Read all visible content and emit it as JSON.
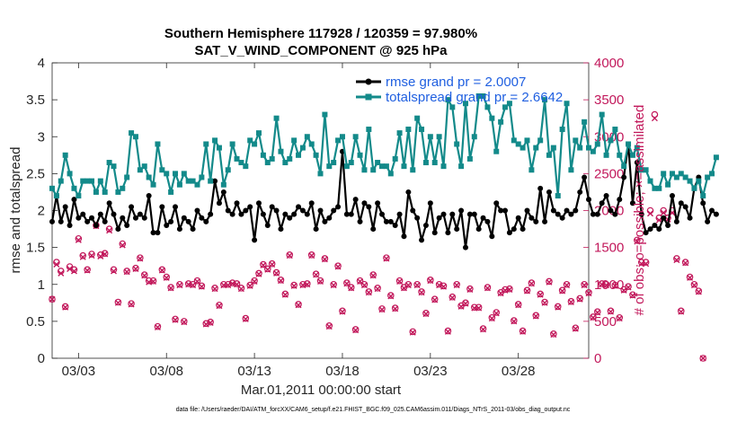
{
  "chart_data": {
    "type": "line",
    "title": "Southern Hemisphere 117928 / 120359 = 97.980%",
    "subtitle": "SAT_V_WIND_COMPONENT @ 925 hPa",
    "xlabel": "Mar.01,2011 00:00:00 start",
    "ylabel_left": "rmse and totalspread",
    "ylabel_right": "# of obs: o=possible; ×=assimilated",
    "ylim_left": [
      0,
      4
    ],
    "ylim_right": [
      0,
      4000
    ],
    "yticks_left": [
      "0",
      "0.5",
      "1",
      "1.5",
      "2",
      "2.5",
      "3",
      "3.5",
      "4"
    ],
    "yticks_right": [
      "0",
      "500",
      "1000",
      "1500",
      "2000",
      "2500",
      "3000",
      "3500",
      "4000"
    ],
    "xticks": [
      "03/03",
      "03/08",
      "03/13",
      "03/18",
      "03/23",
      "03/28"
    ],
    "xtick_days": [
      3,
      8,
      13,
      18,
      23,
      28
    ],
    "xlim_days": [
      1.5,
      32.0
    ],
    "x_start_day": 1.5,
    "x_step_days": 0.25,
    "series": [
      {
        "name": "rmse grand pr = 2.0007",
        "color": "#000000",
        "axis": "left",
        "values": [
          1.85,
          2.2,
          1.85,
          2.05,
          1.8,
          2.15,
          1.9,
          1.95,
          1.85,
          1.9,
          1.8,
          1.95,
          1.85,
          2.1,
          1.95,
          1.75,
          1.9,
          1.8,
          2.05,
          1.9,
          1.95,
          1.9,
          2.2,
          1.7,
          1.7,
          2.05,
          1.8,
          1.85,
          2.05,
          1.75,
          1.9,
          1.85,
          1.75,
          2.0,
          1.9,
          1.85,
          1.95,
          2.4,
          2.1,
          2.25,
          2.0,
          1.95,
          2.1,
          1.95,
          2.0,
          2.05,
          1.6,
          2.1,
          1.95,
          1.8,
          2.05,
          2.0,
          1.75,
          1.95,
          1.9,
          1.95,
          2.05,
          2.0,
          1.95,
          2.1,
          1.75,
          2.0,
          1.85,
          1.9,
          2.0,
          2.05,
          2.8,
          1.95,
          1.95,
          2.15,
          1.85,
          2.1,
          2.05,
          1.75,
          2.1,
          1.95,
          1.85,
          1.85,
          1.8,
          1.95,
          1.65,
          2.25,
          2.0,
          1.9,
          1.6,
          1.8,
          2.1,
          1.7,
          1.9,
          1.95,
          1.7,
          1.95,
          1.75,
          2.0,
          1.5,
          1.95,
          1.95,
          1.75,
          1.9,
          1.85,
          1.65,
          2.1,
          2.0,
          2.0,
          1.7,
          1.75,
          1.9,
          1.75,
          2.0,
          1.9,
          1.85,
          2.3,
          1.85,
          2.25,
          2.0,
          1.95,
          1.9,
          2.0,
          1.95,
          2.0,
          2.25,
          2.45,
          2.15,
          1.95,
          1.95,
          2.1,
          2.2,
          2.0,
          1.95,
          2.15,
          2.45,
          2.9,
          2.1,
          2.65,
          1.95,
          1.7,
          1.75,
          1.8,
          1.75,
          1.9,
          1.8,
          2.2,
          1.85,
          2.1,
          2.05,
          1.9,
          2.3,
          2.45,
          2.1,
          1.85,
          2.0,
          1.95
        ]
      },
      {
        "name": "totalspread grand pr = 2.6642",
        "color": "#138a8a",
        "axis": "left",
        "values": [
          2.3,
          2.2,
          2.4,
          2.75,
          2.5,
          2.3,
          2.2,
          2.4,
          2.4,
          2.4,
          2.25,
          2.4,
          2.25,
          2.65,
          2.6,
          2.25,
          2.3,
          2.45,
          3.05,
          3.0,
          2.55,
          2.6,
          2.45,
          2.35,
          2.9,
          2.55,
          2.5,
          2.25,
          2.5,
          2.35,
          2.5,
          2.4,
          2.4,
          2.35,
          2.45,
          2.9,
          2.4,
          2.95,
          2.85,
          2.35,
          2.55,
          2.9,
          2.7,
          2.65,
          2.6,
          2.95,
          2.9,
          3.05,
          2.75,
          2.65,
          2.7,
          3.25,
          2.8,
          2.65,
          2.7,
          2.95,
          2.75,
          2.85,
          3.0,
          2.9,
          2.75,
          2.5,
          3.3,
          2.6,
          2.65,
          2.95,
          3.0,
          2.6,
          2.65,
          3.0,
          2.75,
          2.55,
          3.1,
          2.55,
          2.65,
          2.6,
          2.6,
          2.5,
          2.7,
          3.05,
          2.6,
          3.1,
          2.55,
          3.25,
          3.1,
          2.65,
          3.0,
          2.65,
          3.0,
          2.6,
          3.5,
          3.4,
          2.9,
          2.6,
          3.45,
          2.7,
          3.0,
          3.55,
          3.55,
          3.4,
          3.25,
          2.8,
          3.2,
          3.4,
          3.45,
          2.95,
          2.9,
          2.85,
          2.95,
          2.55,
          2.85,
          2.95,
          3.5,
          2.75,
          2.85,
          2.2,
          3.1,
          3.45,
          2.55,
          2.95,
          2.85,
          3.2,
          2.85,
          2.8,
          2.9,
          3.3,
          2.75,
          2.95,
          3.1,
          2.75,
          2.6,
          2.9,
          2.75,
          2.85,
          2.55,
          2.55,
          2.4,
          2.3,
          2.3,
          2.5,
          2.35,
          2.5,
          2.45,
          2.5,
          2.45,
          2.4,
          2.3,
          2.4,
          2.2,
          2.45,
          2.5,
          2.72
        ]
      }
    ],
    "obs_possible": [
      800,
      1300,
      1180,
      700,
      1240,
      1200,
      1620,
      1390,
      1200,
      1410,
      1800,
      1400,
      1420,
      1750,
      1200,
      760,
      1550,
      1180,
      740,
      1220,
      1360,
      1130,
      1050,
      1050,
      430,
      1200,
      1100,
      960,
      530,
      1000,
      500,
      1010,
      1000,
      1050,
      980,
      470,
      490,
      950,
      720,
      1000,
      1000,
      1020,
      1010,
      950,
      540,
      990,
      1050,
      1150,
      1270,
      1210,
      1280,
      1160,
      1060,
      870,
      1400,
      990,
      730,
      1000,
      1010,
      1400,
      1140,
      1050,
      1350,
      440,
      1000,
      1250,
      640,
      1020,
      960,
      390,
      1050,
      1000,
      900,
      1130,
      950,
      670,
      1360,
      850,
      680,
      1050,
      960,
      1000,
      360,
      1000,
      900,
      610,
      1060,
      800,
      1000,
      980,
      370,
      830,
      1000,
      710,
      750,
      940,
      690,
      690,
      400,
      960,
      550,
      620,
      890,
      930,
      940,
      510,
      730,
      370,
      920,
      1020,
      580,
      870,
      760,
      1040,
      330,
      700,
      920,
      1000,
      770,
      410,
      810,
      1000,
      890,
      560,
      630,
      1010,
      1000,
      640,
      990,
      550,
      930,
      970,
      860,
      1600,
      1300,
      1300,
      2000,
      3300,
      1900,
      2000,
      1900,
      2000,
      1350,
      640,
      1300,
      1100,
      1000,
      910,
      0
    ],
    "obs_assimilated": [
      800,
      1270,
      1150,
      690,
      1210,
      1180,
      1600,
      1370,
      1190,
      1390,
      1790,
      1380,
      1410,
      1730,
      1180,
      750,
      1530,
      1170,
      730,
      1210,
      1350,
      1120,
      1030,
      1040,
      420,
      1190,
      1090,
      950,
      520,
      990,
      490,
      1000,
      990,
      1040,
      970,
      460,
      480,
      940,
      710,
      990,
      990,
      1010,
      1000,
      940,
      530,
      980,
      1040,
      1140,
      1260,
      1200,
      1270,
      1150,
      1050,
      860,
      1390,
      980,
      720,
      990,
      1000,
      1390,
      1130,
      1040,
      1340,
      430,
      990,
      1240,
      630,
      1010,
      950,
      380,
      1040,
      990,
      890,
      1120,
      940,
      660,
      1350,
      840,
      670,
      1040,
      950,
      990,
      350,
      990,
      890,
      600,
      1050,
      790,
      990,
      970,
      360,
      820,
      990,
      700,
      740,
      930,
      680,
      680,
      390,
      950,
      540,
      610,
      880,
      920,
      930,
      500,
      720,
      360,
      910,
      1010,
      570,
      860,
      750,
      1030,
      320,
      690,
      910,
      990,
      760,
      400,
      800,
      990,
      880,
      550,
      620,
      1000,
      990,
      630,
      980,
      540,
      920,
      960,
      850,
      1580,
      1280,
      1280,
      1960,
      3250,
      1870,
      1970,
      1880,
      1970,
      1330,
      630,
      1290,
      1090,
      990,
      900,
      0
    ],
    "obs_color": "#c2185b"
  },
  "footer": "data file: /Users/raeder/DAI/ATM_forcXX/CAM6_setup/f.e21.FHIST_BGC.f09_025.CAM6assim.011/Diags_NTrS_2011-03/obs_diag_output.nc"
}
